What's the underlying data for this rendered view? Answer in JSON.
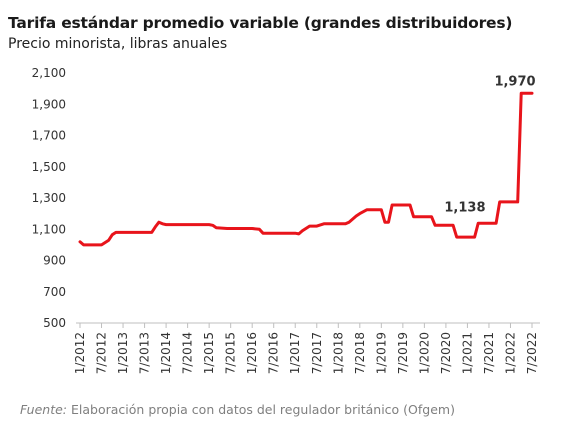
{
  "header": {
    "title": "Tarifa estándar promedio variable (grandes distribuidores)",
    "subtitle": "Precio minorista, libras anuales"
  },
  "footer": {
    "source_lead": "Fuente:",
    "source_text": "Elaboración propia con datos del regulador británico (Ofgem)"
  },
  "colors": {
    "line": "#e8141b",
    "axis": "#bfbfbf",
    "text": "#333333"
  },
  "chart_data": {
    "type": "line",
    "title": "Tarifa estándar promedio variable (grandes distribuidores)",
    "subtitle": "Precio minorista, libras anuales",
    "xlabel": "",
    "ylabel": "",
    "ylim": [
      500,
      2100
    ],
    "yticks": [
      500,
      700,
      900,
      1100,
      1300,
      1500,
      1700,
      1900,
      2100
    ],
    "ytick_labels": [
      "500",
      "700",
      "900",
      "1,100",
      "1,300",
      "1,500",
      "1,700",
      "1,900",
      "2,100"
    ],
    "xlim": [
      "2012-01",
      "2022-07"
    ],
    "xtick_labels": [
      "1/2012",
      "7/2012",
      "1/2013",
      "7/2013",
      "1/2014",
      "7/2014",
      "1/2015",
      "7/2015",
      "1/2016",
      "7/2016",
      "1/2017",
      "7/2017",
      "1/2018",
      "7/2018",
      "1/2019",
      "7/2019",
      "1/2020",
      "7/2020",
      "1/2021",
      "7/2021",
      "1/2022",
      "7/2022"
    ],
    "grid": false,
    "legend": "none",
    "series": [
      {
        "x": [
          "2012-01",
          "2012-02",
          "2012-07",
          "2012-09",
          "2012-10",
          "2012-11",
          "2013-01",
          "2013-07",
          "2013-09",
          "2013-10",
          "2013-11",
          "2013-12",
          "2014-01",
          "2014-07",
          "2015-01",
          "2015-02",
          "2015-03",
          "2015-06",
          "2015-07",
          "2016-01",
          "2016-03",
          "2016-04",
          "2016-07",
          "2017-01",
          "2017-02",
          "2017-03",
          "2017-05",
          "2017-07",
          "2017-09",
          "2018-01",
          "2018-03",
          "2018-04",
          "2018-06",
          "2018-07",
          "2018-09",
          "2018-10",
          "2019-01",
          "2019-02",
          "2019-03",
          "2019-04",
          "2019-07",
          "2019-09",
          "2019-10",
          "2020-01",
          "2020-03",
          "2020-04",
          "2020-07",
          "2020-09",
          "2020-10",
          "2021-01",
          "2021-03",
          "2021-04",
          "2021-07",
          "2021-09",
          "2021-10",
          "2022-01",
          "2022-03",
          "2022-04",
          "2022-07"
        ],
        "y": [
          1020,
          1000,
          1000,
          1030,
          1065,
          1080,
          1080,
          1080,
          1080,
          1115,
          1145,
          1135,
          1130,
          1130,
          1130,
          1125,
          1110,
          1105,
          1105,
          1105,
          1100,
          1075,
          1075,
          1075,
          1070,
          1090,
          1120,
          1120,
          1135,
          1135,
          1135,
          1145,
          1185,
          1200,
          1225,
          1225,
          1225,
          1145,
          1145,
          1255,
          1255,
          1255,
          1180,
          1180,
          1180,
          1125,
          1125,
          1125,
          1050,
          1050,
          1050,
          1138,
          1138,
          1138,
          1275,
          1275,
          1275,
          1970,
          1970
        ]
      }
    ],
    "annotations": [
      {
        "x": "2021-07",
        "y": 1138,
        "text": "1,138"
      },
      {
        "x": "2022-07",
        "y": 1970,
        "text": "1,970"
      }
    ]
  }
}
